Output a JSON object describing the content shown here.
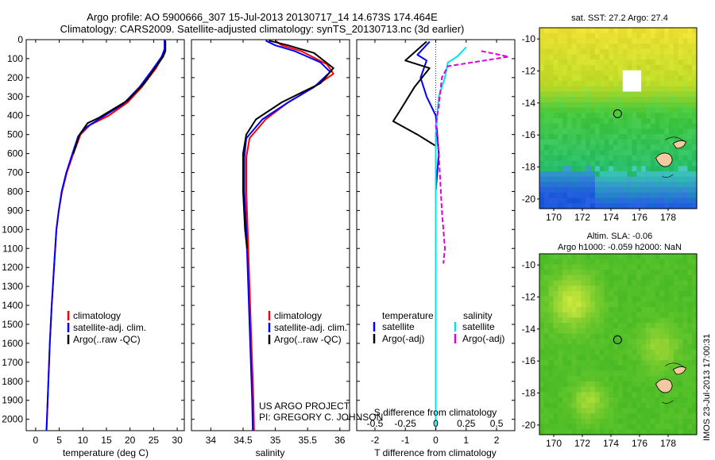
{
  "header": {
    "line1": "Argo profile: AO 5900666_307 15-Jul-2013 20130717_14 14.673S 174.464E",
    "line2": "Climatology: CARS2009. Satellite-adjusted climatology: synTS_20130713.nc (3d earlier)"
  },
  "colors": {
    "climatology": "#ff0000",
    "satellite": "#0000ff",
    "argo": "#000000",
    "sal_satellite": "#00e5e5",
    "sal_argo": "#e000e0"
  },
  "depth_axis": {
    "ticks": [
      0,
      100,
      200,
      300,
      400,
      500,
      600,
      700,
      800,
      900,
      1000,
      1100,
      1200,
      1300,
      1400,
      1500,
      1600,
      1700,
      1800,
      1900,
      2000
    ],
    "range": [
      0,
      2060
    ],
    "label": ""
  },
  "legend_profiles": [
    "climatology",
    "satellite-adj. clim.",
    "Argo(..raw -QC)"
  ],
  "legend_diff": {
    "temp_head": "temperature",
    "sal_head": "salinity",
    "temp_items": [
      "satellite",
      "Argo(-adj)"
    ],
    "sal_items": [
      "satellite",
      "Argo(-adj)"
    ]
  },
  "project": {
    "line1": "US ARGO PROJECT",
    "line2": "PI: GREGORY C. JOHNSON"
  },
  "chart_data": [
    {
      "type": "line",
      "xlabel": "temperature (deg C)",
      "ylabel": "",
      "xlim": [
        -2,
        31.5
      ],
      "ylim": [
        2060,
        0
      ],
      "xticks": [
        0,
        5,
        10,
        15,
        20,
        25,
        30
      ],
      "series": [
        {
          "name": "climatology",
          "points": [
            [
              27.4,
              0
            ],
            [
              27.4,
              50
            ],
            [
              27.1,
              80
            ],
            [
              25.5,
              150
            ],
            [
              22.5,
              250
            ],
            [
              19.5,
              330
            ],
            [
              15.5,
              400
            ],
            [
              11.5,
              450
            ],
            [
              9.5,
              500
            ],
            [
              8.0,
              600
            ],
            [
              6.6,
              700
            ],
            [
              5.6,
              800
            ],
            [
              4.9,
              900
            ],
            [
              4.4,
              1000
            ],
            [
              3.9,
              1200
            ],
            [
              3.4,
              1400
            ],
            [
              3.0,
              1600
            ],
            [
              2.7,
              1800
            ],
            [
              2.4,
              2000
            ],
            [
              2.3,
              2060
            ]
          ]
        },
        {
          "name": "satellite-adj. clim.",
          "points": [
            [
              27.3,
              0
            ],
            [
              27.3,
              50
            ],
            [
              26.7,
              90
            ],
            [
              24.7,
              160
            ],
            [
              22.0,
              250
            ],
            [
              18.5,
              340
            ],
            [
              14.0,
              410
            ],
            [
              10.8,
              460
            ],
            [
              9.0,
              510
            ],
            [
              7.8,
              600
            ],
            [
              6.5,
              700
            ],
            [
              5.5,
              800
            ],
            [
              4.9,
              900
            ],
            [
              4.4,
              1000
            ],
            [
              3.9,
              1200
            ],
            [
              3.4,
              1400
            ],
            [
              3.0,
              1600
            ],
            [
              2.7,
              1800
            ],
            [
              2.4,
              2000
            ],
            [
              2.3,
              2060
            ]
          ]
        },
        {
          "name": "Argo(..raw -QC)",
          "points": [
            [
              27.5,
              5
            ],
            [
              27.5,
              60
            ],
            [
              27.0,
              90
            ],
            [
              25.0,
              160
            ],
            [
              23.0,
              230
            ],
            [
              19.5,
              320
            ],
            [
              13.5,
              410
            ],
            [
              11.0,
              440
            ],
            [
              9.3,
              500
            ],
            [
              8.0,
              600
            ]
          ]
        }
      ]
    },
    {
      "type": "line",
      "xlabel": "salinity",
      "ylabel": "",
      "xlim": [
        33.7,
        36.15
      ],
      "ylim": [
        2060,
        0
      ],
      "xticks": [
        34,
        34.5,
        35,
        35.5,
        36
      ],
      "series": [
        {
          "name": "climatology",
          "points": [
            [
              35.0,
              5
            ],
            [
              35.1,
              30
            ],
            [
              35.4,
              60
            ],
            [
              35.8,
              130
            ],
            [
              35.9,
              180
            ],
            [
              35.6,
              250
            ],
            [
              35.2,
              330
            ],
            [
              34.85,
              420
            ],
            [
              34.6,
              520
            ],
            [
              34.55,
              620
            ],
            [
              34.55,
              800
            ],
            [
              34.57,
              1000
            ],
            [
              34.6,
              1300
            ],
            [
              34.63,
              1600
            ],
            [
              34.66,
              1900
            ],
            [
              34.67,
              2060
            ]
          ]
        },
        {
          "name": "satellite-adj. clim.",
          "points": [
            [
              34.85,
              5
            ],
            [
              35.0,
              30
            ],
            [
              35.3,
              60
            ],
            [
              35.7,
              120
            ],
            [
              35.85,
              170
            ],
            [
              35.6,
              250
            ],
            [
              35.2,
              330
            ],
            [
              34.8,
              420
            ],
            [
              34.55,
              520
            ],
            [
              34.52,
              620
            ],
            [
              34.52,
              800
            ],
            [
              34.55,
              1000
            ],
            [
              34.58,
              1300
            ],
            [
              34.61,
              1600
            ],
            [
              34.64,
              1900
            ],
            [
              34.65,
              2060
            ]
          ]
        },
        {
          "name": "Argo(..raw -QC)",
          "points": [
            [
              34.9,
              5
            ],
            [
              35.2,
              30
            ],
            [
              35.6,
              70
            ],
            [
              35.9,
              150
            ],
            [
              35.7,
              230
            ],
            [
              35.1,
              330
            ],
            [
              34.7,
              420
            ],
            [
              34.55,
              500
            ],
            [
              34.5,
              600
            ],
            [
              34.5,
              800
            ],
            [
              34.53,
              1000
            ],
            [
              34.56,
              1100
            ]
          ]
        }
      ]
    },
    {
      "type": "line",
      "xlabel": "T difference from climatology",
      "xlabel2": "S difference from climatology",
      "ylabel": "",
      "xlim": [
        -2.6,
        2.6
      ],
      "ylim": [
        2060,
        0
      ],
      "xticks": [
        -2,
        -1,
        0,
        1,
        2
      ],
      "xticks_top": [
        "-0.5",
        "-0.25",
        "0",
        "0.25",
        "0.5"
      ],
      "series": [
        {
          "name": "temperature satellite",
          "points": [
            [
              -0.2,
              10
            ],
            [
              -0.6,
              80
            ],
            [
              -0.3,
              110
            ],
            [
              -0.5,
              200
            ],
            [
              -0.3,
              300
            ],
            [
              0.0,
              400
            ],
            [
              0.1,
              600
            ],
            [
              0.0,
              800
            ],
            [
              0.0,
              2060
            ]
          ]
        },
        {
          "name": "temperature Argo(-adj)",
          "points": [
            [
              -0.3,
              10
            ],
            [
              -1.0,
              110
            ],
            [
              -0.2,
              150
            ],
            [
              -0.7,
              250
            ],
            [
              -1.2,
              380
            ],
            [
              -1.4,
              430
            ],
            [
              -0.6,
              500
            ],
            [
              0.0,
              560
            ],
            [
              0.0,
              700
            ]
          ]
        },
        {
          "name": "salinity satellite",
          "points": [
            [
              1.0,
              40
            ],
            [
              0.7,
              90
            ],
            [
              0.4,
              120
            ],
            [
              0.3,
              200
            ],
            [
              0.1,
              300
            ],
            [
              0.0,
              500
            ],
            [
              0.0,
              2060
            ]
          ]
        },
        {
          "name": "salinity Argo(-adj)",
          "points": [
            [
              1.5,
              60
            ],
            [
              2.4,
              90
            ],
            [
              0.4,
              140
            ],
            [
              0.2,
              200
            ],
            [
              0.1,
              350
            ],
            [
              0.0,
              450
            ],
            [
              0.1,
              600
            ],
            [
              0.2,
              900
            ],
            [
              0.3,
              1100
            ],
            [
              0.25,
              1180
            ]
          ]
        }
      ]
    }
  ],
  "maps": {
    "sst_title": "sat. SST: 27.2 Argo: 27.4",
    "sla_title_1": "Altim. SLA: -0.06",
    "sla_title_2": "Argo h1000: -0.059 h2000: NaN",
    "yticks": [
      "-10",
      "-12",
      "-14",
      "-16",
      "-18",
      "-20"
    ],
    "xticks": [
      "170",
      "172",
      "174",
      "176",
      "178"
    ]
  },
  "timestamp": "IMOS 23-Jul-2013 17:00:31"
}
